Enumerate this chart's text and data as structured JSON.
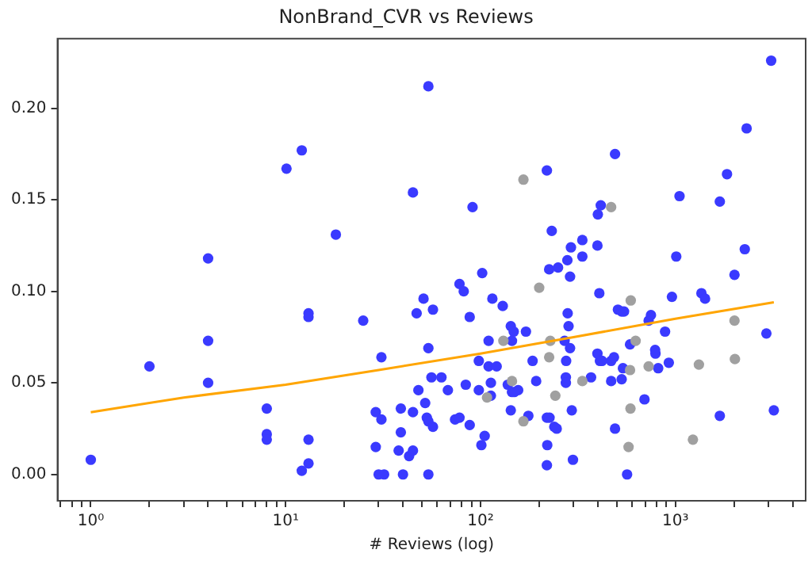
{
  "chart_data": {
    "type": "scatter",
    "title": "NonBrand_CVR vs Reviews",
    "xlabel": "# Reviews (log)",
    "log": "x",
    "grid": false,
    "legend": false,
    "marker": "circle",
    "xlim": [
      0.675,
      4660
    ],
    "ylim": [
      -0.0144,
      0.238
    ],
    "xticks": [
      {
        "value": 0.7,
        "label": null
      },
      {
        "value": 0.8,
        "label": null
      },
      {
        "value": 0.9,
        "label": null
      },
      {
        "value": 1,
        "label": "10⁰"
      },
      {
        "value": 2,
        "label": null
      },
      {
        "value": 3,
        "label": null
      },
      {
        "value": 4,
        "label": null
      },
      {
        "value": 5,
        "label": null
      },
      {
        "value": 6,
        "label": null
      },
      {
        "value": 7,
        "label": null
      },
      {
        "value": 8,
        "label": null
      },
      {
        "value": 9,
        "label": null
      },
      {
        "value": 10,
        "label": "10¹"
      },
      {
        "value": 20,
        "label": null
      },
      {
        "value": 30,
        "label": null
      },
      {
        "value": 40,
        "label": null
      },
      {
        "value": 50,
        "label": null
      },
      {
        "value": 60,
        "label": null
      },
      {
        "value": 70,
        "label": null
      },
      {
        "value": 80,
        "label": null
      },
      {
        "value": 90,
        "label": null
      },
      {
        "value": 100,
        "label": "10²"
      },
      {
        "value": 200,
        "label": null
      },
      {
        "value": 300,
        "label": null
      },
      {
        "value": 400,
        "label": null
      },
      {
        "value": 500,
        "label": null
      },
      {
        "value": 600,
        "label": null
      },
      {
        "value": 700,
        "label": null
      },
      {
        "value": 800,
        "label": null
      },
      {
        "value": 900,
        "label": null
      },
      {
        "value": 1000,
        "label": "10³"
      },
      {
        "value": 2000,
        "label": null
      },
      {
        "value": 3000,
        "label": null
      },
      {
        "value": 4000,
        "label": null
      }
    ],
    "yticks": [
      {
        "value": 0,
        "label": "0.00"
      },
      {
        "value": 0.05,
        "label": "0.05"
      },
      {
        "value": 0.1,
        "label": "0.10"
      },
      {
        "value": 0.15,
        "label": "0.15"
      },
      {
        "value": 0.2,
        "label": "0.20"
      }
    ],
    "series": [
      {
        "type": "scatter",
        "color": "#a0a0a0",
        "x": [
          166,
          108,
          131,
          145,
          166,
          200,
          228,
          225,
          242,
          333,
          468,
          590,
          625,
          585,
          588,
          575,
          729,
          1230,
          1320,
          2010,
          2020
        ],
        "values": [
          0.161,
          0.042,
          0.073,
          0.051,
          0.029,
          0.102,
          0.073,
          0.064,
          0.043,
          0.051,
          0.146,
          0.095,
          0.073,
          0.057,
          0.036,
          0.015,
          0.059,
          0.019,
          0.06,
          0.084,
          0.063
        ]
      },
      {
        "type": "scatter",
        "color": "#3a3aff",
        "x": [
          1,
          2,
          4,
          4,
          4,
          8,
          8,
          8,
          13.1,
          13.1,
          13.1,
          13.1,
          12.1,
          25,
          31,
          29,
          31,
          29,
          30,
          32,
          39,
          39,
          38,
          43,
          45,
          40,
          45,
          48,
          52,
          47,
          51,
          54,
          53,
          54,
          54,
          10.1,
          12.1,
          18.1,
          45,
          54,
          91,
          219,
          232,
          291,
          333,
          333,
          279,
          398,
          400,
          414,
          490,
          1010,
          1050,
          1690,
          1840,
          2270,
          2320,
          3100,
          57,
          56,
          63,
          68,
          57,
          78,
          82,
          88,
          102,
          115,
          130,
          110,
          98,
          110,
          121,
          84,
          98,
          113,
          113,
          74,
          78,
          88,
          105,
          101,
          143,
          148,
          145,
          171,
          185,
          138,
          145,
          156,
          149,
          143,
          176,
          193,
          225,
          250,
          288,
          280,
          283,
          270,
          288,
          275,
          274,
          274,
          294,
          219,
          226,
          239,
          246,
          220,
          219,
          298,
          369,
          407,
          398,
          410,
          420,
          468,
          484,
          468,
          530,
          538,
          490,
          507,
          530,
          545,
          585,
          565,
          694,
          729,
          749,
          787,
          790,
          816,
          885,
          925,
          960,
          1360,
          1420,
          1690,
          2010,
          2930,
          3200
        ],
        "values": [
          0.008,
          0.059,
          0.118,
          0.073,
          0.05,
          0.036,
          0.022,
          0.019,
          0.088,
          0.086,
          0.019,
          0.006,
          0.002,
          0.084,
          0.064,
          0.034,
          0.03,
          0.015,
          0.0,
          0.0,
          0.036,
          0.023,
          0.013,
          0.01,
          0.013,
          0.0,
          0.034,
          0.046,
          0.039,
          0.088,
          0.096,
          0.069,
          0.031,
          0.029,
          0.0,
          0.167,
          0.177,
          0.131,
          0.154,
          0.212,
          0.146,
          0.166,
          0.133,
          0.124,
          0.128,
          0.119,
          0.117,
          0.125,
          0.142,
          0.147,
          0.175,
          0.119,
          0.152,
          0.149,
          0.164,
          0.123,
          0.189,
          0.226,
          0.09,
          0.053,
          0.053,
          0.046,
          0.026,
          0.104,
          0.1,
          0.086,
          0.11,
          0.096,
          0.092,
          0.073,
          0.062,
          0.059,
          0.059,
          0.049,
          0.046,
          0.05,
          0.043,
          0.03,
          0.031,
          0.027,
          0.021,
          0.016,
          0.081,
          0.078,
          0.073,
          0.078,
          0.062,
          0.049,
          0.045,
          0.046,
          0.045,
          0.035,
          0.032,
          0.051,
          0.112,
          0.113,
          0.108,
          0.088,
          0.081,
          0.073,
          0.069,
          0.062,
          0.053,
          0.05,
          0.035,
          0.031,
          0.031,
          0.026,
          0.025,
          0.016,
          0.005,
          0.008,
          0.053,
          0.099,
          0.066,
          0.062,
          0.062,
          0.062,
          0.064,
          0.051,
          0.052,
          0.058,
          0.025,
          0.09,
          0.089,
          0.089,
          0.071,
          0.0,
          0.041,
          0.084,
          0.087,
          0.068,
          0.066,
          0.058,
          0.078,
          0.061,
          0.097,
          0.099,
          0.096,
          0.032,
          0.109,
          0.077,
          0.035
        ]
      },
      {
        "type": "line",
        "color": "#ffa500",
        "marker": "none",
        "line_style": "solid",
        "x": [
          1,
          3,
          10,
          30,
          100,
          300,
          1000,
          3200
        ],
        "values": [
          0.034,
          0.042,
          0.049,
          0.057,
          0.066,
          0.075,
          0.085,
          0.094
        ]
      }
    ]
  }
}
